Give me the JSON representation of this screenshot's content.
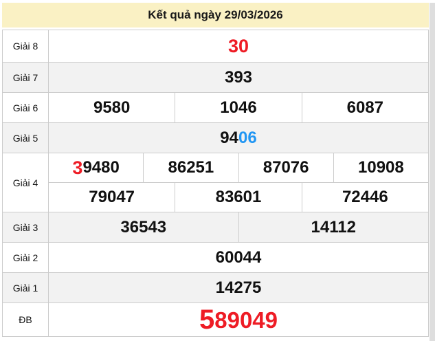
{
  "page": {
    "title": "Kết quả ngày 29/03/2026"
  },
  "colors": {
    "header_bg": "#faf1c4",
    "alt_row_bg": "#f2f2f2",
    "border": "#cccccc",
    "red": "#ee1c25",
    "blue": "#2196f3",
    "number": "#111111",
    "page_edge": "#dedede"
  },
  "results": {
    "rows": [
      {
        "label": "Giải 8",
        "shaded": false,
        "lines": [
          [
            {
              "parts": [
                {
                  "text": "30",
                  "color": "red",
                  "size": "l"
                }
              ]
            }
          ]
        ]
      },
      {
        "label": "Giải 7",
        "shaded": true,
        "lines": [
          [
            {
              "parts": [
                {
                  "text": "393",
                  "color": "black",
                  "size": "m"
                }
              ]
            }
          ]
        ]
      },
      {
        "label": "Giải 6",
        "shaded": false,
        "lines": [
          [
            {
              "parts": [
                {
                  "text": "9580",
                  "color": "black",
                  "size": "m"
                }
              ]
            },
            {
              "parts": [
                {
                  "text": "1046",
                  "color": "black",
                  "size": "m"
                }
              ]
            },
            {
              "parts": [
                {
                  "text": "6087",
                  "color": "black",
                  "size": "m"
                }
              ]
            }
          ]
        ]
      },
      {
        "label": "Giải 5",
        "shaded": true,
        "lines": [
          [
            {
              "parts": [
                {
                  "text": "94",
                  "color": "black",
                  "size": "m"
                },
                {
                  "text": "06",
                  "color": "blue",
                  "size": "m"
                }
              ]
            }
          ]
        ]
      },
      {
        "label": "Giải 4",
        "shaded": false,
        "lines": [
          [
            {
              "parts": [
                {
                  "text": "3",
                  "color": "red",
                  "size": "l"
                },
                {
                  "text": "9480",
                  "color": "black",
                  "size": "m"
                }
              ]
            },
            {
              "parts": [
                {
                  "text": "86251",
                  "color": "black",
                  "size": "m"
                }
              ]
            },
            {
              "parts": [
                {
                  "text": "87076",
                  "color": "black",
                  "size": "m"
                }
              ]
            },
            {
              "parts": [
                {
                  "text": "10908",
                  "color": "black",
                  "size": "m"
                }
              ]
            }
          ],
          [
            {
              "parts": [
                {
                  "text": "79047",
                  "color": "black",
                  "size": "m"
                }
              ]
            },
            {
              "parts": [
                {
                  "text": "83601",
                  "color": "black",
                  "size": "m"
                }
              ]
            },
            {
              "parts": [
                {
                  "text": "72446",
                  "color": "black",
                  "size": "m"
                }
              ]
            }
          ]
        ]
      },
      {
        "label": "Giải 3",
        "shaded": true,
        "lines": [
          [
            {
              "parts": [
                {
                  "text": "36543",
                  "color": "black",
                  "size": "m"
                }
              ]
            },
            {
              "parts": [
                {
                  "text": "14112",
                  "color": "black",
                  "size": "m"
                }
              ]
            }
          ]
        ]
      },
      {
        "label": "Giải 2",
        "shaded": false,
        "lines": [
          [
            {
              "parts": [
                {
                  "text": "60044",
                  "color": "black",
                  "size": "m"
                }
              ]
            }
          ]
        ]
      },
      {
        "label": "Giải 1",
        "shaded": true,
        "lines": [
          [
            {
              "parts": [
                {
                  "text": "14275",
                  "color": "black",
                  "size": "m"
                }
              ]
            }
          ]
        ]
      },
      {
        "label": "ĐB",
        "shaded": false,
        "lines": [
          [
            {
              "parts": [
                {
                  "text": "5",
                  "color": "red",
                  "size": "xl"
                },
                {
                  "text": "89049",
                  "color": "red",
                  "size": "dl"
                }
              ]
            }
          ]
        ]
      }
    ]
  }
}
